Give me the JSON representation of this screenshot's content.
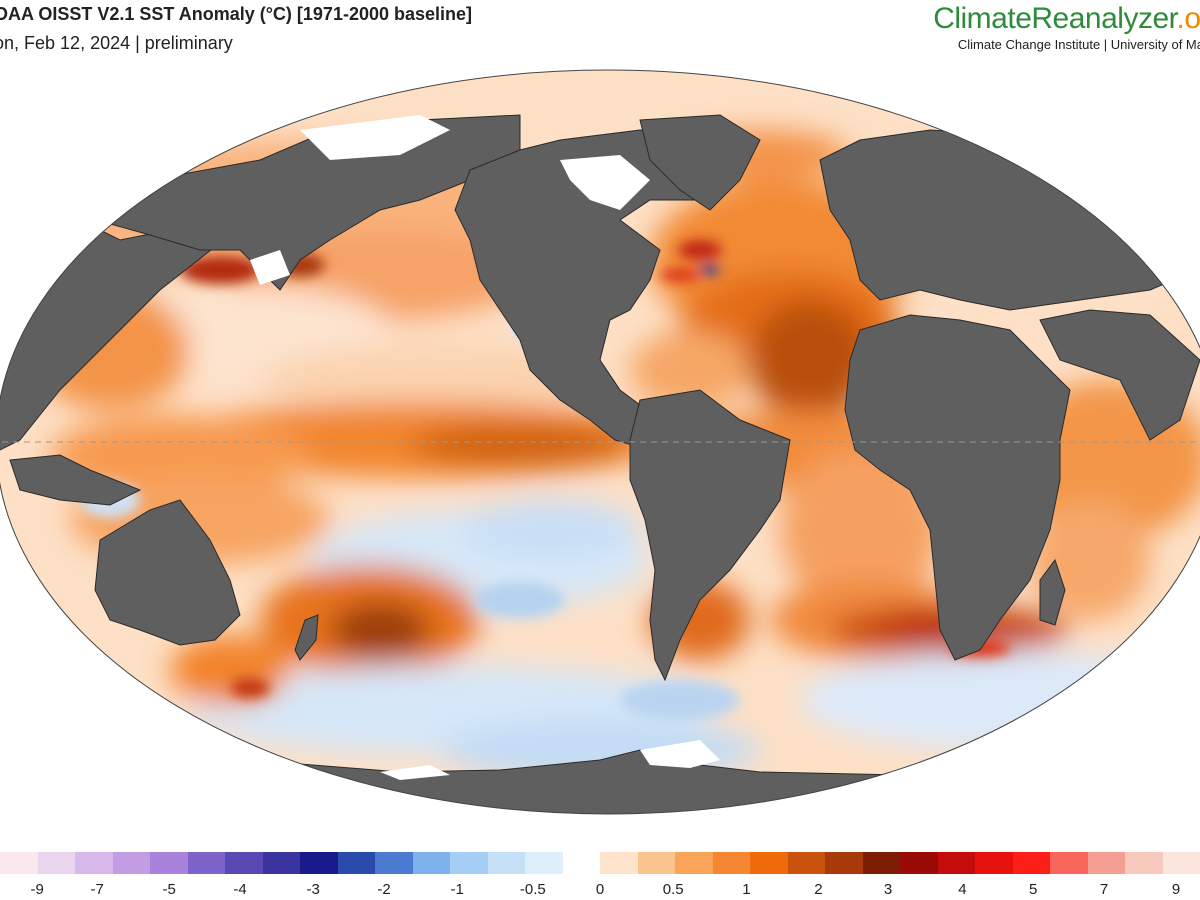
{
  "header": {
    "title": "OAA OISST V2.1 SST Anomaly (°C) [1971-2000 baseline]",
    "subtitle": "on, Feb 12, 2024 | preliminary"
  },
  "branding": {
    "name_part1": "Climate",
    "name_part2": "Reanalyzer",
    "name_part3": ".or",
    "affiliation": "Climate Change Institute | University of Ma"
  },
  "colors": {
    "land": "#5f5f5f",
    "ocean_neutral": "#ffffff",
    "brand_green": "#2e8b3a",
    "brand_orange": "#f08a00"
  },
  "legend": {
    "colors": [
      "#fbe8ee",
      "#ead5ef",
      "#d6b9ea",
      "#c29de4",
      "#a882db",
      "#7e63cb",
      "#5a48b5",
      "#3a33a0",
      "#1a1a8c",
      "#2a4bab",
      "#4a7bd0",
      "#7eb2ec",
      "#a6cdf3",
      "#c6e0f8",
      "#dfeefb",
      "#ffffff",
      "#fde3cc",
      "#fbc38e",
      "#f9a458",
      "#f58632",
      "#ef6a0a",
      "#c9520c",
      "#a73a08",
      "#7e1d04",
      "#9a0a06",
      "#c40c0a",
      "#e5120d",
      "#fb1f17",
      "#f9675c",
      "#f59f93",
      "#f7c9bd",
      "#fbe6dd"
    ],
    "ticks": [
      {
        "label": "-9",
        "pos": 3.1
      },
      {
        "label": "-7",
        "pos": 8.1
      },
      {
        "label": "-5",
        "pos": 14.1
      },
      {
        "label": "-4",
        "pos": 20.0
      },
      {
        "label": "-3",
        "pos": 26.1
      },
      {
        "label": "-2",
        "pos": 32.0
      },
      {
        "label": "-1",
        "pos": 38.1
      },
      {
        "label": "-0.5",
        "pos": 44.4
      },
      {
        "label": "0",
        "pos": 50.0
      },
      {
        "label": "0.5",
        "pos": 56.1
      },
      {
        "label": "1",
        "pos": 62.2
      },
      {
        "label": "2",
        "pos": 68.2
      },
      {
        "label": "3",
        "pos": 74.0
      },
      {
        "label": "4",
        "pos": 80.2
      },
      {
        "label": "5",
        "pos": 86.1
      },
      {
        "label": "7",
        "pos": 92.0
      },
      {
        "label": "9",
        "pos": 98.0
      }
    ]
  }
}
